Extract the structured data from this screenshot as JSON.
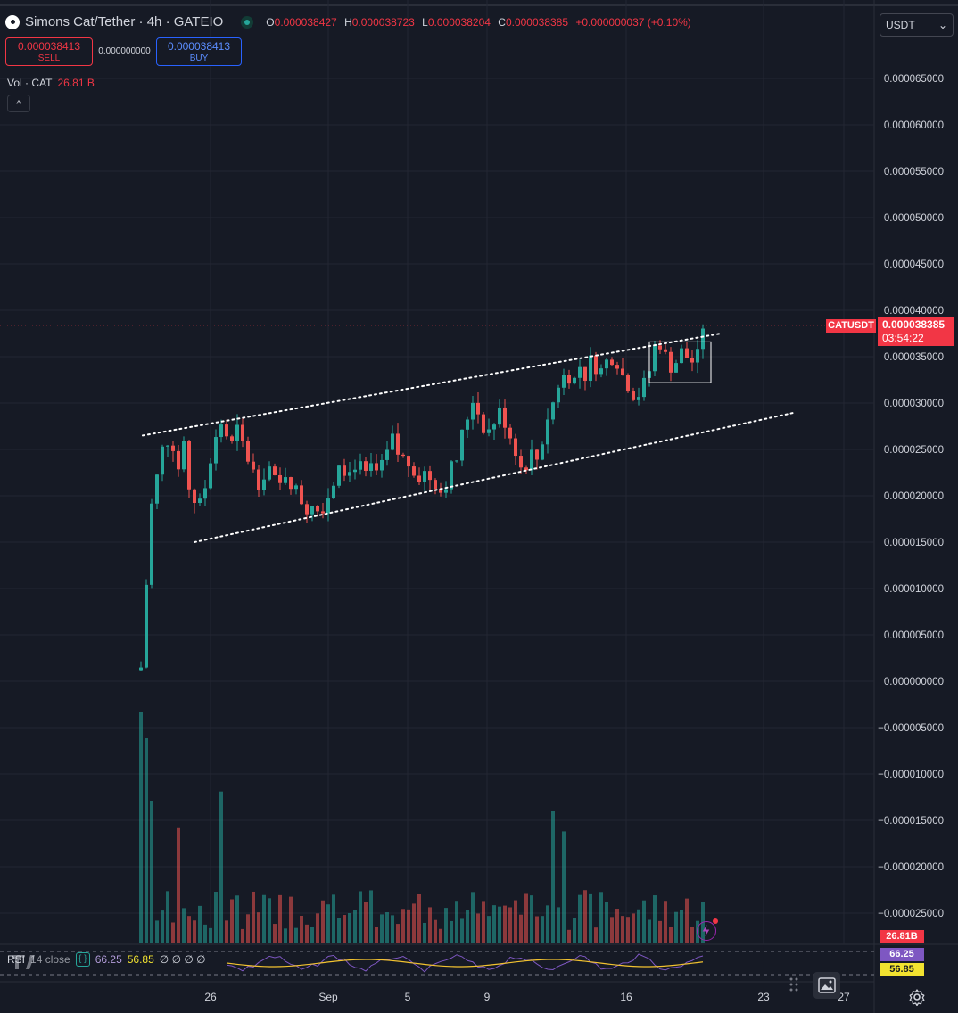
{
  "header": {
    "title": "Simons Cat/Tether · 4h · GATEIO",
    "ohlc": [
      {
        "k": "O",
        "v": "0.000038427"
      },
      {
        "k": "H",
        "v": "0.000038723"
      },
      {
        "k": "L",
        "v": "0.000038204"
      },
      {
        "k": "C",
        "v": "0.000038385"
      }
    ],
    "change": "+0.000000037 (+0.10%)",
    "sell_price": "0.000038413",
    "sell_label": "SELL",
    "spread": "0.000000000",
    "buy_price": "0.000038413",
    "buy_label": "BUY",
    "vol_label": "Vol · CAT",
    "vol_value": "26.81 B",
    "collapse_icon": "^"
  },
  "currency_select": {
    "value": "USDT",
    "chevron": "⌄"
  },
  "price_tag": {
    "symbol": "CATUSDT",
    "price": "0.000038385",
    "countdown": "03:54:22"
  },
  "volume_badge": "26.81B",
  "rsi": {
    "label": "RSI",
    "params": "14 close",
    "curl_icon": "{ }",
    "value1": "66.25",
    "value2": "56.85",
    "nulls": "∅ ∅ ∅ ∅",
    "badge1": "66.25",
    "badge2": "56.85"
  },
  "colors": {
    "up": "#26a69a",
    "down": "#ef5350",
    "background": "#161a25",
    "price_line": "#f23645",
    "rsi_line": "#7e57c2",
    "rsi_ma": "#f2c230"
  },
  "chart_data": {
    "type": "candlestick",
    "x_ticks": [
      "26",
      "Sep",
      "5",
      "9",
      "16",
      "23",
      "27"
    ],
    "y_ticks": [
      "0.000065000",
      "0.000060000",
      "0.000055000",
      "0.000050000",
      "0.000045000",
      "0.000040000",
      "0.000035000",
      "0.000030000",
      "0.000025000",
      "0.000020000",
      "0.000015000",
      "0.000010000",
      "0.000005000",
      "0.000000000",
      "−0.000005000",
      "−0.000010000",
      "−0.000015000",
      "−0.000020000",
      "−0.000025000"
    ],
    "ylim": [
      -2.8e-05,
      6.95e-05
    ],
    "last_close": 3.8385e-05,
    "close_path": [
      [
        0,
        1.5e-06
      ],
      [
        1,
        1.05e-05
      ],
      [
        2,
        1.9e-05
      ],
      [
        3,
        2.2e-05
      ],
      [
        4,
        2.5e-05
      ],
      [
        5,
        2.6e-05
      ],
      [
        6,
        2.55e-05
      ],
      [
        7,
        2.3e-05
      ],
      [
        8,
        2.5e-05
      ],
      [
        9,
        2.1e-05
      ],
      [
        10,
        1.95e-05
      ],
      [
        11,
        1.9e-05
      ],
      [
        12,
        2.1e-05
      ],
      [
        13,
        2.4e-05
      ],
      [
        14,
        2.65e-05
      ],
      [
        15,
        2.8e-05
      ],
      [
        16,
        2.65e-05
      ],
      [
        17,
        2.55e-05
      ],
      [
        18,
        2.7e-05
      ],
      [
        19,
        2.55e-05
      ],
      [
        20,
        2.4e-05
      ],
      [
        21,
        2.25e-05
      ],
      [
        22,
        2.15e-05
      ],
      [
        23,
        2.25e-05
      ],
      [
        24,
        2.3e-05
      ],
      [
        25,
        2.15e-05
      ],
      [
        26,
        2.1e-05
      ],
      [
        27,
        2.25e-05
      ],
      [
        28,
        2.15e-05
      ],
      [
        29,
        2.05e-05
      ],
      [
        30,
        1.95e-05
      ],
      [
        31,
        1.85e-05
      ],
      [
        32,
        1.95e-05
      ],
      [
        33,
        1.85e-05
      ],
      [
        34,
        1.9e-05
      ],
      [
        35,
        2e-05
      ],
      [
        36,
        2.15e-05
      ],
      [
        37,
        2.4e-05
      ],
      [
        38,
        2.3e-05
      ],
      [
        39,
        2.25e-05
      ],
      [
        40,
        2.35e-05
      ],
      [
        41,
        2.3e-05
      ],
      [
        42,
        2.2e-05
      ],
      [
        43,
        2.3e-05
      ],
      [
        44,
        2.25e-05
      ],
      [
        45,
        2.3e-05
      ],
      [
        46,
        2.45e-05
      ],
      [
        47,
        2.6e-05
      ],
      [
        48,
        2.45e-05
      ],
      [
        49,
        2.4e-05
      ],
      [
        50,
        2.35e-05
      ],
      [
        51,
        2.3e-05
      ],
      [
        52,
        2.2e-05
      ],
      [
        53,
        2.25e-05
      ],
      [
        54,
        2.2e-05
      ],
      [
        55,
        2.15e-05
      ],
      [
        56,
        2.05e-05
      ],
      [
        57,
        2.15e-05
      ],
      [
        58,
        2.3e-05
      ],
      [
        59,
        2.4e-05
      ],
      [
        60,
        2.65e-05
      ],
      [
        61,
        2.85e-05
      ],
      [
        62,
        3.05e-05
      ],
      [
        63,
        2.9e-05
      ],
      [
        64,
        2.75e-05
      ],
      [
        65,
        2.7e-05
      ],
      [
        66,
        2.8e-05
      ],
      [
        67,
        2.9e-05
      ],
      [
        68,
        2.8e-05
      ],
      [
        69,
        2.65e-05
      ],
      [
        70,
        2.5e-05
      ],
      [
        71,
        2.3e-05
      ],
      [
        72,
        2.35e-05
      ],
      [
        73,
        2.45e-05
      ],
      [
        74,
        2.4e-05
      ],
      [
        75,
        2.6e-05
      ],
      [
        76,
        2.85e-05
      ],
      [
        77,
        3e-05
      ],
      [
        78,
        3.2e-05
      ],
      [
        79,
        3.35e-05
      ],
      [
        80,
        3.3e-05
      ],
      [
        81,
        3.25e-05
      ],
      [
        82,
        3.4e-05
      ],
      [
        83,
        3.3e-05
      ],
      [
        84,
        3.45e-05
      ],
      [
        85,
        3.4e-05
      ],
      [
        86,
        3.35e-05
      ],
      [
        87,
        3.45e-05
      ],
      [
        88,
        3.5e-05
      ],
      [
        89,
        3.45e-05
      ],
      [
        90,
        3.3e-05
      ],
      [
        91,
        3.2e-05
      ],
      [
        92,
        3.1e-05
      ],
      [
        93,
        3.1e-05
      ],
      [
        94,
        3.2e-05
      ],
      [
        95,
        3.35e-05
      ],
      [
        96,
        3.6e-05
      ],
      [
        97,
        3.65e-05
      ],
      [
        98,
        3.5e-05
      ],
      [
        99,
        3.4e-05
      ],
      [
        100,
        3.45e-05
      ],
      [
        101,
        3.55e-05
      ],
      [
        102,
        3.5e-05
      ],
      [
        103,
        3.45e-05
      ],
      [
        104,
        3.5e-05
      ],
      [
        105,
        3.8385e-05
      ]
    ],
    "volume_scale_max": 26.81
  }
}
